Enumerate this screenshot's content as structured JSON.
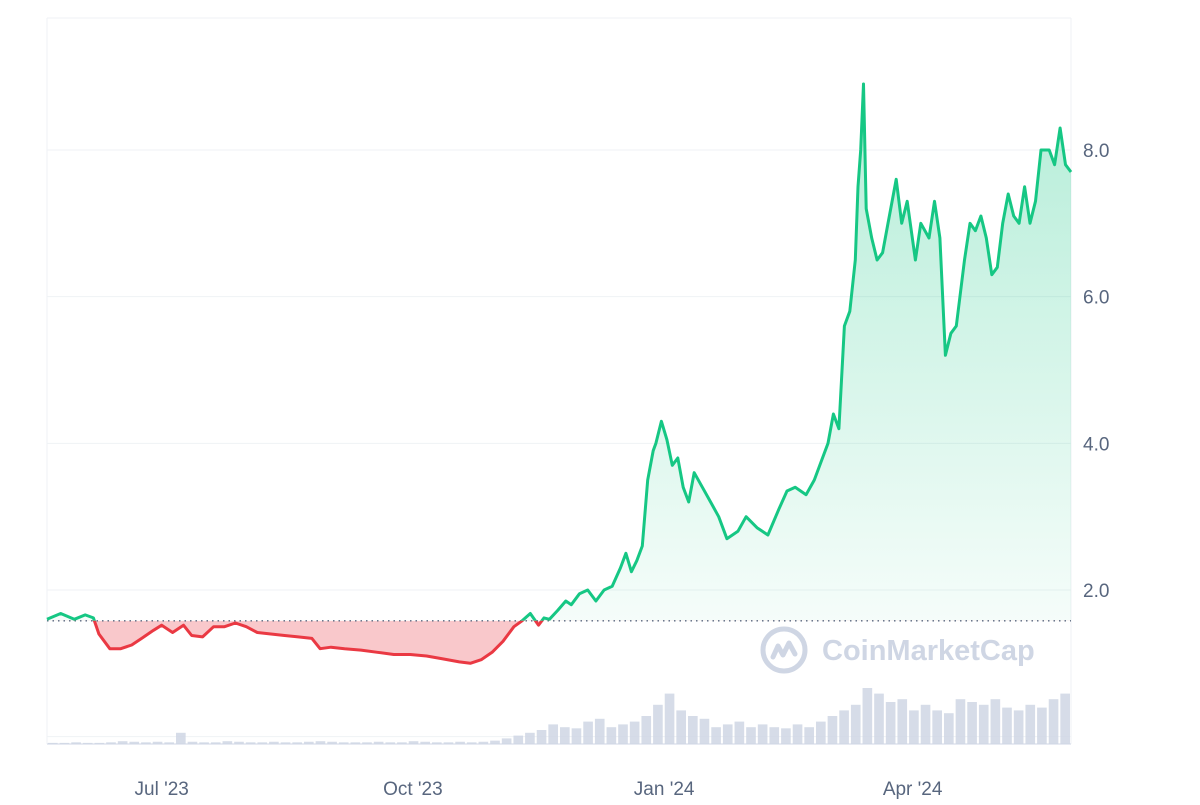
{
  "watermark": {
    "text": "CoinMarketCap",
    "icon": "coinmarketcap-logo-icon"
  },
  "colors": {
    "up_line": "#16c784",
    "down_line": "#ea3943",
    "up_fill": "#16c784",
    "down_fill": "#ea3943",
    "grid": "#eff2f5",
    "axis_text": "#58667e",
    "baseline": "#58667e",
    "volume": "#cfd6e4"
  },
  "chart_data": {
    "type": "area",
    "title": "",
    "xlabel": "",
    "ylabel": "",
    "x_ticks": [
      {
        "label": "Jul '23",
        "date": "2023-07-01"
      },
      {
        "label": "Oct '23",
        "date": "2023-10-01"
      },
      {
        "label": "Jan '24",
        "date": "2024-01-01"
      },
      {
        "label": "Apr '24",
        "date": "2024-04-01"
      }
    ],
    "y_ticks": [
      "2.0",
      "4.0",
      "6.0",
      "8.0"
    ],
    "y_tick_values": [
      2,
      4,
      6,
      8
    ],
    "ylim": [
      -0.1,
      9.8
    ],
    "xlim": [
      "2023-05-20",
      "2024-05-29"
    ],
    "baseline_value": 1.58,
    "grid": true,
    "series": [
      {
        "points": [
          [
            "2023-05-20",
            1.6
          ],
          [
            "2023-05-25",
            1.68
          ],
          [
            "2023-05-30",
            1.6
          ],
          [
            "2023-06-03",
            1.66
          ],
          [
            "2023-06-06",
            1.62
          ],
          [
            "2023-06-08",
            1.4
          ],
          [
            "2023-06-12",
            1.2
          ],
          [
            "2023-06-16",
            1.2
          ],
          [
            "2023-06-20",
            1.25
          ],
          [
            "2023-06-24",
            1.35
          ],
          [
            "2023-06-28",
            1.45
          ],
          [
            "2023-07-01",
            1.52
          ],
          [
            "2023-07-05",
            1.42
          ],
          [
            "2023-07-09",
            1.52
          ],
          [
            "2023-07-12",
            1.38
          ],
          [
            "2023-07-16",
            1.36
          ],
          [
            "2023-07-20",
            1.5
          ],
          [
            "2023-07-24",
            1.5
          ],
          [
            "2023-07-28",
            1.55
          ],
          [
            "2023-08-01",
            1.5
          ],
          [
            "2023-08-05",
            1.42
          ],
          [
            "2023-08-10",
            1.4
          ],
          [
            "2023-08-15",
            1.38
          ],
          [
            "2023-08-20",
            1.36
          ],
          [
            "2023-08-25",
            1.34
          ],
          [
            "2023-08-28",
            1.2
          ],
          [
            "2023-09-01",
            1.22
          ],
          [
            "2023-09-06",
            1.2
          ],
          [
            "2023-09-12",
            1.18
          ],
          [
            "2023-09-18",
            1.15
          ],
          [
            "2023-09-24",
            1.12
          ],
          [
            "2023-09-30",
            1.12
          ],
          [
            "2023-10-06",
            1.1
          ],
          [
            "2023-10-12",
            1.06
          ],
          [
            "2023-10-18",
            1.02
          ],
          [
            "2023-10-22",
            1.0
          ],
          [
            "2023-10-26",
            1.05
          ],
          [
            "2023-10-30",
            1.15
          ],
          [
            "2023-11-03",
            1.3
          ],
          [
            "2023-11-07",
            1.5
          ],
          [
            "2023-11-10",
            1.58
          ],
          [
            "2023-11-13",
            1.68
          ],
          [
            "2023-11-16",
            1.52
          ],
          [
            "2023-11-18",
            1.62
          ],
          [
            "2023-11-20",
            1.6
          ],
          [
            "2023-11-23",
            1.72
          ],
          [
            "2023-11-26",
            1.85
          ],
          [
            "2023-11-28",
            1.8
          ],
          [
            "2023-12-01",
            1.95
          ],
          [
            "2023-12-04",
            2.0
          ],
          [
            "2023-12-07",
            1.85
          ],
          [
            "2023-12-10",
            2.0
          ],
          [
            "2023-12-13",
            2.05
          ],
          [
            "2023-12-16",
            2.3
          ],
          [
            "2023-12-18",
            2.5
          ],
          [
            "2023-12-20",
            2.25
          ],
          [
            "2023-12-22",
            2.4
          ],
          [
            "2023-12-24",
            2.6
          ],
          [
            "2023-12-26",
            3.5
          ],
          [
            "2023-12-28",
            3.9
          ],
          [
            "2023-12-29",
            4.0
          ],
          [
            "2023-12-31",
            4.3
          ],
          [
            "2024-01-02",
            4.05
          ],
          [
            "2024-01-04",
            3.7
          ],
          [
            "2024-01-06",
            3.8
          ],
          [
            "2024-01-08",
            3.4
          ],
          [
            "2024-01-10",
            3.2
          ],
          [
            "2024-01-12",
            3.6
          ],
          [
            "2024-01-15",
            3.4
          ],
          [
            "2024-01-18",
            3.2
          ],
          [
            "2024-01-21",
            3.0
          ],
          [
            "2024-01-24",
            2.7
          ],
          [
            "2024-01-28",
            2.8
          ],
          [
            "2024-01-31",
            3.0
          ],
          [
            "2024-02-04",
            2.85
          ],
          [
            "2024-02-08",
            2.75
          ],
          [
            "2024-02-12",
            3.1
          ],
          [
            "2024-02-15",
            3.35
          ],
          [
            "2024-02-18",
            3.4
          ],
          [
            "2024-02-22",
            3.3
          ],
          [
            "2024-02-25",
            3.5
          ],
          [
            "2024-02-28",
            3.8
          ],
          [
            "2024-03-01",
            4.0
          ],
          [
            "2024-03-03",
            4.4
          ],
          [
            "2024-03-05",
            4.2
          ],
          [
            "2024-03-07",
            5.6
          ],
          [
            "2024-03-09",
            5.8
          ],
          [
            "2024-03-11",
            6.5
          ],
          [
            "2024-03-12",
            7.5
          ],
          [
            "2024-03-13",
            8.0
          ],
          [
            "2024-03-14",
            8.9
          ],
          [
            "2024-03-15",
            7.2
          ],
          [
            "2024-03-17",
            6.8
          ],
          [
            "2024-03-19",
            6.5
          ],
          [
            "2024-03-21",
            6.6
          ],
          [
            "2024-03-23",
            7.0
          ],
          [
            "2024-03-26",
            7.6
          ],
          [
            "2024-03-28",
            7.0
          ],
          [
            "2024-03-30",
            7.3
          ],
          [
            "2024-04-02",
            6.5
          ],
          [
            "2024-04-04",
            7.0
          ],
          [
            "2024-04-07",
            6.8
          ],
          [
            "2024-04-09",
            7.3
          ],
          [
            "2024-04-11",
            6.8
          ],
          [
            "2024-04-13",
            5.2
          ],
          [
            "2024-04-15",
            5.5
          ],
          [
            "2024-04-17",
            5.6
          ],
          [
            "2024-04-20",
            6.5
          ],
          [
            "2024-04-22",
            7.0
          ],
          [
            "2024-04-24",
            6.9
          ],
          [
            "2024-04-26",
            7.1
          ],
          [
            "2024-04-28",
            6.8
          ],
          [
            "2024-04-30",
            6.3
          ],
          [
            "2024-05-02",
            6.4
          ],
          [
            "2024-05-04",
            7.0
          ],
          [
            "2024-05-06",
            7.4
          ],
          [
            "2024-05-08",
            7.1
          ],
          [
            "2024-05-10",
            7.0
          ],
          [
            "2024-05-12",
            7.5
          ],
          [
            "2024-05-14",
            7.0
          ],
          [
            "2024-05-16",
            7.3
          ],
          [
            "2024-05-18",
            8.0
          ],
          [
            "2024-05-21",
            8.0
          ],
          [
            "2024-05-23",
            7.8
          ],
          [
            "2024-05-25",
            8.3
          ],
          [
            "2024-05-27",
            7.8
          ],
          [
            "2024-05-29",
            7.7
          ]
        ]
      }
    ],
    "volume_levels": [
      0.02,
      0.02,
      0.03,
      0.02,
      0.02,
      0.03,
      0.05,
      0.04,
      0.03,
      0.04,
      0.03,
      0.2,
      0.04,
      0.03,
      0.03,
      0.05,
      0.04,
      0.03,
      0.03,
      0.04,
      0.03,
      0.03,
      0.04,
      0.05,
      0.04,
      0.03,
      0.03,
      0.03,
      0.04,
      0.03,
      0.03,
      0.05,
      0.04,
      0.03,
      0.03,
      0.04,
      0.03,
      0.04,
      0.06,
      0.1,
      0.15,
      0.2,
      0.25,
      0.35,
      0.3,
      0.28,
      0.4,
      0.45,
      0.3,
      0.35,
      0.4,
      0.5,
      0.7,
      0.9,
      0.6,
      0.5,
      0.45,
      0.3,
      0.35,
      0.4,
      0.3,
      0.35,
      0.3,
      0.28,
      0.35,
      0.3,
      0.4,
      0.5,
      0.6,
      0.7,
      1.0,
      0.9,
      0.75,
      0.8,
      0.6,
      0.7,
      0.6,
      0.55,
      0.8,
      0.75,
      0.7,
      0.8,
      0.65,
      0.6,
      0.7,
      0.65,
      0.8,
      0.9
    ]
  }
}
